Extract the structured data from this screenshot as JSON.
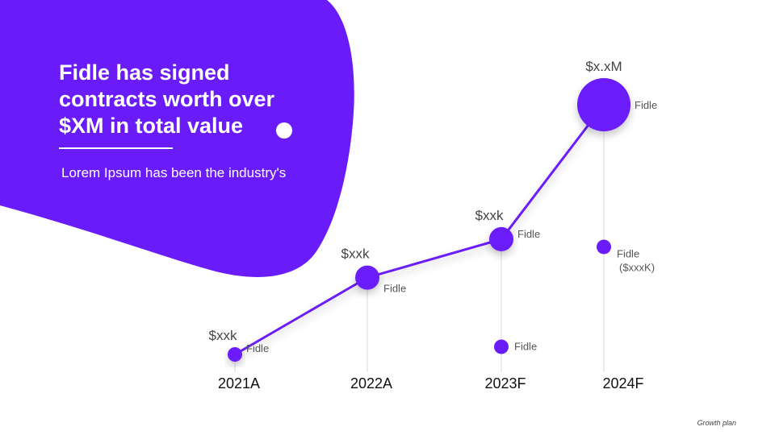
{
  "headline": "Fidle has signed contracts worth over $XM in total value",
  "subtext": "Lorem Ipsum has been the industry's",
  "footer": "Growth plan",
  "colors": {
    "accent": "#6a1bfa",
    "text": "#444444",
    "label": "#555555",
    "gridline": "#d8d8d8"
  },
  "chart_data": {
    "type": "line",
    "title": "",
    "categories": [
      "2021A",
      "2022A",
      "2023F",
      "2024F"
    ],
    "series": [
      {
        "name": "Fidle",
        "values": [
          1,
          3,
          4,
          7.5
        ],
        "value_labels": [
          "$xxk",
          "$xxk",
          "$xxk",
          "$x.xM"
        ],
        "point_labels": [
          "Fidle",
          "Fidle",
          "Fidle",
          "Fidle"
        ],
        "point_size": [
          1,
          2,
          2,
          4
        ]
      }
    ],
    "extra_points": [
      {
        "category": "2023F",
        "value": 1.2,
        "label": "Fidle"
      },
      {
        "category": "2024F",
        "value": 3.8,
        "label": "Fidle",
        "sublabel": "($xxxK)"
      }
    ],
    "ylim": [
      0,
      8
    ],
    "grid": false,
    "xlabel": "",
    "ylabel": ""
  }
}
